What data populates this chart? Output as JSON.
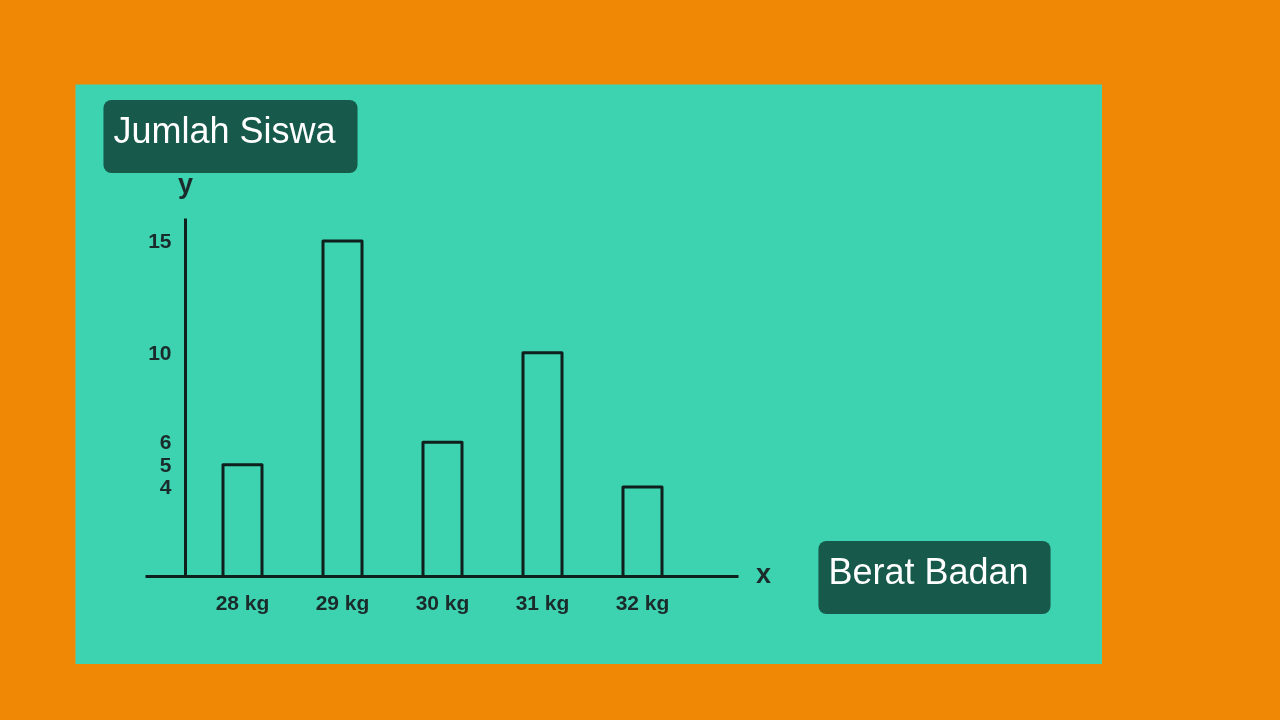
{
  "chart_data": {
    "type": "bar",
    "xlabel": "Berat Badan",
    "ylabel": "Jumlah Siswa",
    "categories": [
      "28 kg",
      "29 kg",
      "30 kg",
      "31 kg",
      "32 kg"
    ],
    "values": [
      5,
      15,
      6,
      10,
      4
    ],
    "color": "#3dd3b0",
    "ylim": [
      0,
      16
    ],
    "yticks": [
      4,
      5,
      6,
      10,
      15
    ],
    "annotations": [
      "y",
      "x"
    ]
  }
}
